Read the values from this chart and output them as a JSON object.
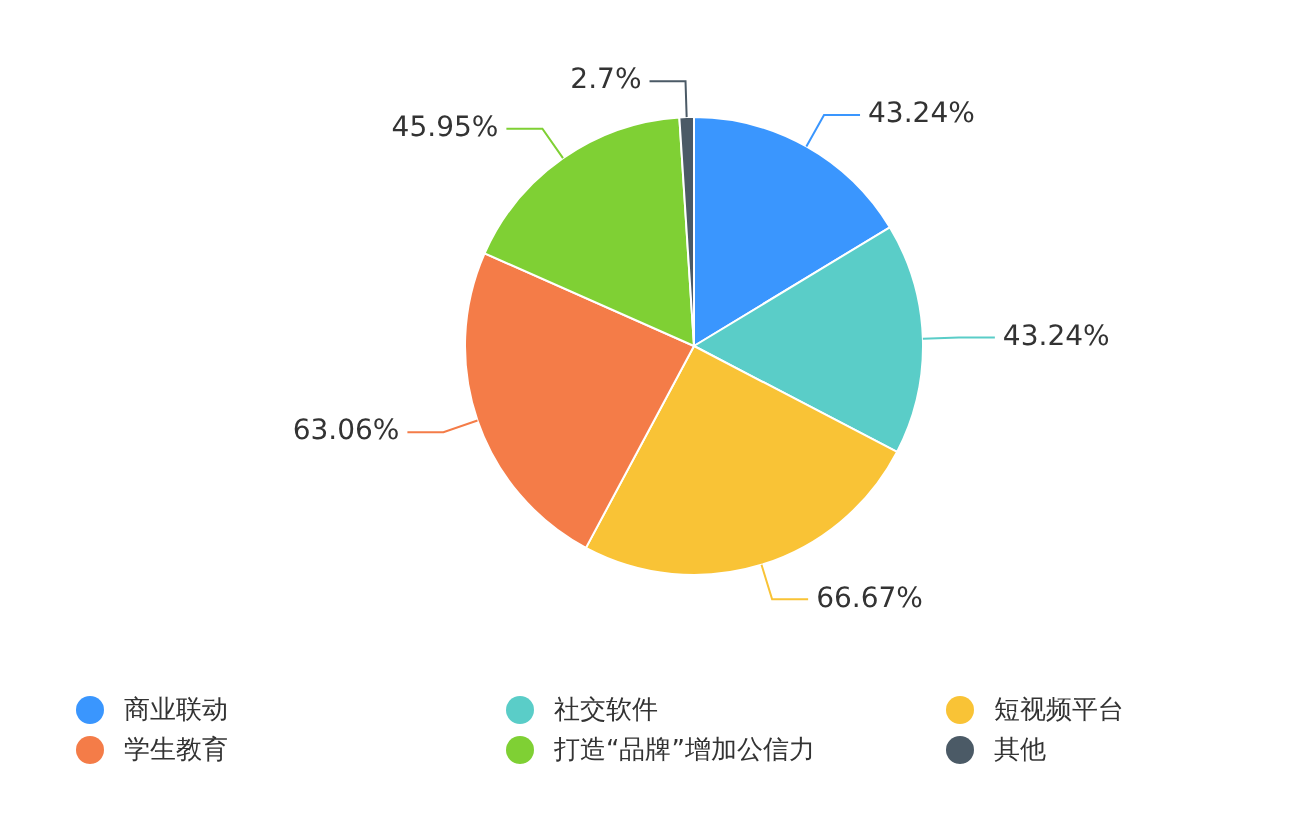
{
  "chart_data": {
    "type": "pie",
    "categories": [
      "商业联动",
      "社交软件",
      "短视频平台",
      "学生教育",
      "打造“品牌”增加公信力",
      "其他"
    ],
    "values": [
      43.24,
      43.24,
      66.67,
      63.06,
      45.95,
      2.7
    ],
    "value_labels": [
      "43.24%",
      "43.24%",
      "66.67%",
      "63.06%",
      "45.95%",
      "2.7%"
    ],
    "colors": [
      "#3a96fe",
      "#5acdc8",
      "#f9c336",
      "#f47c48",
      "#7fd034",
      "#4b5a66"
    ],
    "legend": "bottom"
  }
}
